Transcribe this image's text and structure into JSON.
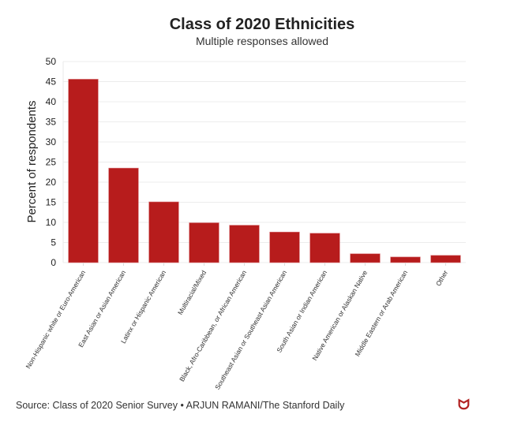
{
  "chart_data": {
    "type": "bar",
    "title": "Class of 2020 Ethnicities",
    "subtitle": "Multiple responses allowed",
    "xlabel": "",
    "ylabel": "Percent of respondents",
    "ylim": [
      0,
      50
    ],
    "yticks": [
      0,
      5,
      10,
      15,
      20,
      25,
      30,
      35,
      40,
      45,
      50
    ],
    "grid": true,
    "bar_color": "#b71c1c",
    "categories": [
      "Non-Hispanic white or Euro-American",
      "East Asian or Asian American",
      "Latinx or Hispanic American",
      "Multiracial/Mixed",
      "Black, Afro-Caribbean, or African American",
      "Southeast Asian or Southeast Asian American",
      "South Asian or Indian American",
      "Native American or Alaskan Native",
      "Middle Eastern or Arab American",
      "Other"
    ],
    "values": [
      45.6,
      23.5,
      15.1,
      9.9,
      9.3,
      7.6,
      7.3,
      2.2,
      1.4,
      1.8
    ]
  },
  "footer": {
    "source": "Source: Class of 2020 Senior Survey • ARJUN RAMANI/The Stanford Daily",
    "logo_text": "S"
  }
}
